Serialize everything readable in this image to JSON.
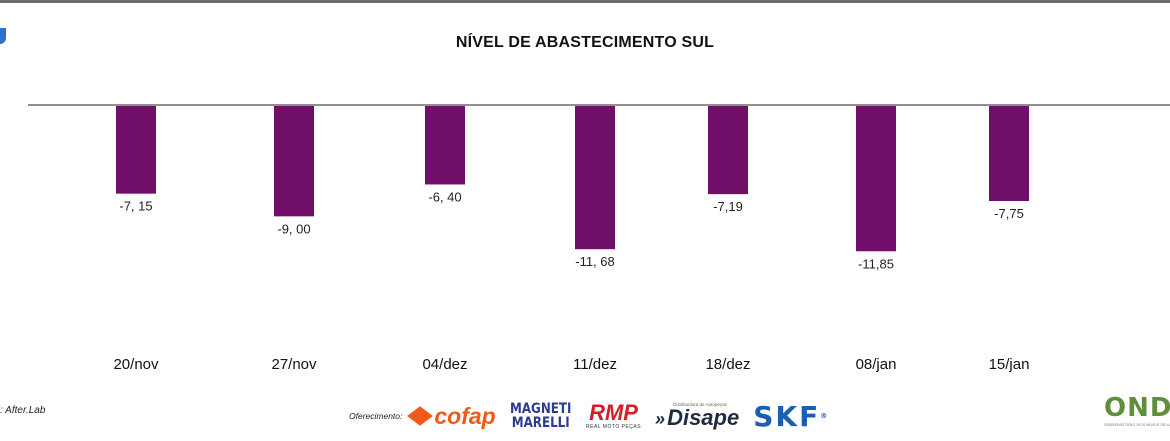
{
  "chart_data": {
    "type": "bar",
    "title": "NÍVEL DE ABASTECIMENTO SUL",
    "categories": [
      "20/nov",
      "27/nov",
      "04/dez",
      "11/dez",
      "18/dez",
      "08/jan",
      "15/jan"
    ],
    "values": [
      -7.15,
      -9.0,
      -6.4,
      -11.68,
      -7.19,
      -11.85,
      -7.75
    ],
    "data_labels": [
      "-7, 15",
      "-9, 00",
      "-6, 40",
      "-11, 68",
      "-7,19",
      "-11,85",
      "-7,75"
    ],
    "xlabel": "",
    "ylabel": "",
    "ylim": [
      -22,
      0
    ],
    "grid": false,
    "bar_color": "#6f0f6a"
  },
  "footer": {
    "source": ": After.Lab",
    "sponsor_label": "Oferecimento:",
    "sponsors": {
      "cofap": "cofap",
      "magneti_line1": "MAGNETI",
      "magneti_line2": "MARELLI",
      "rmp": "RMP",
      "rmp_tag": "REAL MOTO PEÇAS",
      "disape": "Disape",
      "disape_tag": "Distribuidora de Autopeças",
      "skf": "SKF"
    },
    "brand": "OND",
    "brand_tag": "OBSERVATÓRIO DOS NÍVEIS DE ABASTECIMENTO"
  },
  "colors": {
    "bar": "#6f0f6a",
    "axis": "#6b6b6b",
    "cofap": "#ef5a1a",
    "magneti": "#2b3c8f",
    "rmp": "#d32027",
    "skf": "#1b5fb5",
    "onda": "#5f8f3a"
  }
}
